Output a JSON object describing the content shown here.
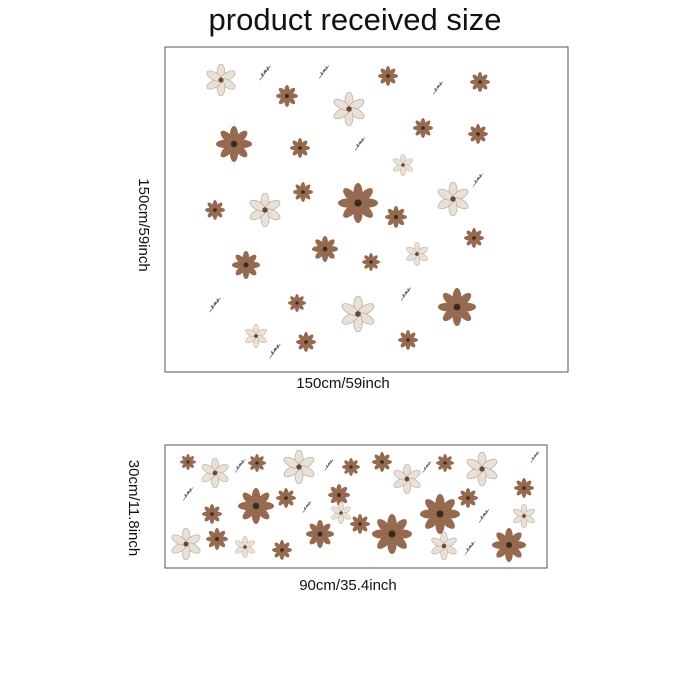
{
  "title": "product received size",
  "panels": [
    {
      "width_label": "150cm/59inch",
      "height_label": "150cm/59inch"
    },
    {
      "width_label": "90cm/35.4inch",
      "height_label": "30cm/11.8inch"
    }
  ]
}
